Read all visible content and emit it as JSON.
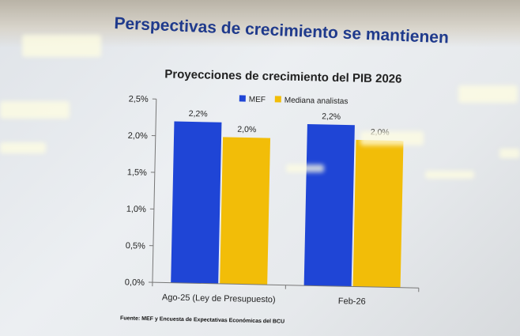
{
  "slide_title": "Perspectivas de crecimiento se mantienen",
  "source_note": "Fuente: MEF y Encuesta de Expectativas Económicas del BCU",
  "colors": {
    "mef": "#1f45d6",
    "analistas": "#f2bd08",
    "title": "#1f3a8c"
  },
  "chart_data": {
    "type": "bar",
    "title": "Proyecciones de crecimiento del PIB 2026",
    "categories": [
      "Ago-25 (Ley de Presupuesto)",
      "Feb-26"
    ],
    "series": [
      {
        "name": "MEF",
        "values": [
          2.2,
          2.2
        ],
        "labels": [
          "2,2%",
          "2,2%"
        ]
      },
      {
        "name": "Mediana analistas",
        "values": [
          2.0,
          2.0
        ],
        "labels": [
          "2,0%",
          "2,0%"
        ]
      }
    ],
    "yticks": [
      "0,0%",
      "0,5%",
      "1,0%",
      "1,5%",
      "2,0%",
      "2,5%"
    ],
    "ylim": [
      0,
      2.5
    ],
    "legend": "top-right",
    "grid": false
  }
}
